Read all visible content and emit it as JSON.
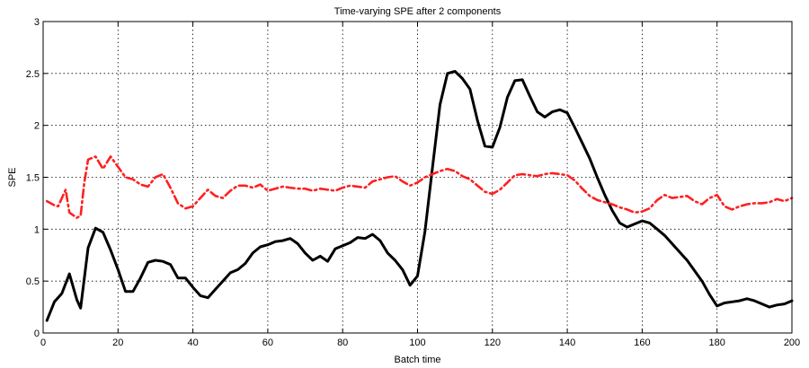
{
  "chart_data": {
    "type": "line",
    "title": "Time-varying SPE after 2 components",
    "xlabel": "Batch time",
    "ylabel": "SPE",
    "xlim": [
      0,
      200
    ],
    "ylim": [
      0,
      3
    ],
    "xticks": [
      "0",
      "20",
      "40",
      "60",
      "80",
      "100",
      "120",
      "140",
      "160",
      "180",
      "200"
    ],
    "yticks": [
      "0",
      "0.5",
      "1",
      "1.5",
      "2",
      "2.5",
      "3"
    ],
    "grid": true,
    "legend": "none",
    "series": [
      {
        "style": "solid",
        "color": "#000000",
        "x": [
          1,
          3,
          5,
          7,
          9,
          10,
          12,
          14,
          16,
          18,
          20,
          22,
          24,
          26,
          28,
          30,
          32,
          34,
          36,
          38,
          40,
          42,
          44,
          46,
          48,
          50,
          52,
          54,
          56,
          58,
          60,
          62,
          64,
          66,
          68,
          70,
          72,
          74,
          76,
          78,
          80,
          82,
          84,
          86,
          88,
          90,
          92,
          94,
          96,
          98,
          100,
          102,
          104,
          106,
          108,
          110,
          112,
          114,
          116,
          118,
          120,
          122,
          124,
          126,
          128,
          130,
          132,
          134,
          136,
          138,
          140,
          142,
          144,
          146,
          148,
          150,
          152,
          154,
          156,
          158,
          160,
          162,
          164,
          166,
          168,
          170,
          172,
          174,
          176,
          178,
          180,
          182,
          184,
          186,
          188,
          190,
          192,
          194,
          196,
          198,
          200
        ],
        "y": [
          0.12,
          0.3,
          0.38,
          0.57,
          0.32,
          0.24,
          0.82,
          1.01,
          0.97,
          0.8,
          0.61,
          0.4,
          0.4,
          0.53,
          0.68,
          0.7,
          0.69,
          0.66,
          0.53,
          0.53,
          0.44,
          0.36,
          0.34,
          0.42,
          0.5,
          0.58,
          0.61,
          0.67,
          0.77,
          0.83,
          0.85,
          0.88,
          0.89,
          0.91,
          0.86,
          0.77,
          0.7,
          0.74,
          0.69,
          0.81,
          0.84,
          0.87,
          0.92,
          0.91,
          0.95,
          0.89,
          0.77,
          0.7,
          0.61,
          0.46,
          0.55,
          0.98,
          1.6,
          2.2,
          2.5,
          2.52,
          2.45,
          2.35,
          2.05,
          1.8,
          1.79,
          1.98,
          2.27,
          2.43,
          2.44,
          2.28,
          2.13,
          2.08,
          2.13,
          2.15,
          2.12,
          1.98,
          1.83,
          1.68,
          1.5,
          1.33,
          1.18,
          1.06,
          1.02,
          1.05,
          1.08,
          1.06,
          1.0,
          0.94,
          0.86,
          0.78,
          0.7,
          0.6,
          0.5,
          0.37,
          0.26,
          0.29,
          0.3,
          0.31,
          0.33,
          0.31,
          0.28,
          0.25,
          0.27,
          0.28,
          0.31
        ]
      },
      {
        "style": "dash-dot",
        "color": "#ff2020",
        "x": [
          1,
          3,
          4,
          6,
          7,
          9,
          10,
          11,
          12,
          14,
          16,
          18,
          20,
          22,
          24,
          26,
          28,
          30,
          32,
          34,
          36,
          38,
          40,
          42,
          44,
          46,
          48,
          50,
          52,
          54,
          56,
          58,
          60,
          62,
          64,
          66,
          68,
          70,
          72,
          74,
          76,
          78,
          80,
          82,
          84,
          86,
          88,
          90,
          92,
          94,
          96,
          98,
          100,
          102,
          104,
          106,
          108,
          110,
          112,
          114,
          116,
          118,
          120,
          122,
          124,
          126,
          128,
          130,
          132,
          134,
          136,
          138,
          140,
          142,
          144,
          146,
          148,
          150,
          152,
          154,
          156,
          158,
          160,
          162,
          164,
          166,
          168,
          170,
          172,
          174,
          176,
          178,
          180,
          182,
          184,
          186,
          188,
          190,
          192,
          194,
          196,
          198,
          200
        ],
        "y": [
          1.27,
          1.23,
          1.22,
          1.38,
          1.16,
          1.11,
          1.13,
          1.45,
          1.67,
          1.7,
          1.58,
          1.7,
          1.6,
          1.5,
          1.48,
          1.43,
          1.41,
          1.5,
          1.53,
          1.4,
          1.25,
          1.2,
          1.22,
          1.3,
          1.38,
          1.32,
          1.3,
          1.37,
          1.42,
          1.42,
          1.4,
          1.43,
          1.37,
          1.39,
          1.41,
          1.4,
          1.39,
          1.39,
          1.37,
          1.39,
          1.38,
          1.37,
          1.4,
          1.42,
          1.41,
          1.4,
          1.46,
          1.48,
          1.5,
          1.51,
          1.46,
          1.42,
          1.45,
          1.5,
          1.53,
          1.56,
          1.58,
          1.56,
          1.51,
          1.48,
          1.42,
          1.36,
          1.34,
          1.38,
          1.45,
          1.52,
          1.53,
          1.52,
          1.51,
          1.53,
          1.54,
          1.53,
          1.52,
          1.47,
          1.39,
          1.32,
          1.28,
          1.26,
          1.24,
          1.21,
          1.19,
          1.16,
          1.17,
          1.2,
          1.28,
          1.33,
          1.3,
          1.31,
          1.32,
          1.27,
          1.24,
          1.3,
          1.33,
          1.22,
          1.19,
          1.22,
          1.24,
          1.25,
          1.25,
          1.26,
          1.29,
          1.27,
          1.3
        ]
      }
    ]
  }
}
